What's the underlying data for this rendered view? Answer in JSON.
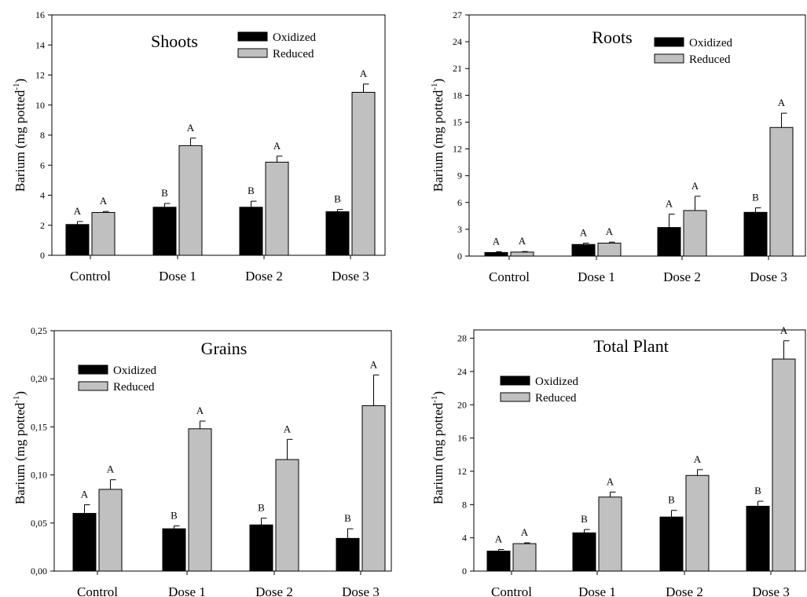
{
  "colors": {
    "oxidized": "#000000",
    "reduced": "#c0c0c0",
    "axis": "#000000",
    "background": "#ffffff"
  },
  "chart_data": [
    {
      "type": "bar",
      "title": "Shoots",
      "ylabel": "Barium (mg potted",
      "ylabel_sup": "-1",
      "ylabel_close": ")",
      "categories": [
        "Control",
        "Dose 1",
        "Dose 2",
        "Dose 3"
      ],
      "ylim": [
        0,
        16
      ],
      "yticks": [
        "0",
        "2",
        "4",
        "6",
        "8",
        "10",
        "12",
        "14",
        "16"
      ],
      "grid": false,
      "legend_position": "top-center",
      "series": [
        {
          "name": "Oxidized",
          "color": "#000000",
          "values": [
            2.05,
            3.2,
            3.2,
            2.9
          ],
          "errors": [
            0.2,
            0.25,
            0.4,
            0.15
          ],
          "sig": [
            "A",
            "B",
            "B",
            "B"
          ]
        },
        {
          "name": "Reduced",
          "color": "#c0c0c0",
          "values": [
            2.85,
            7.3,
            6.2,
            10.85
          ],
          "errors": [
            0.07,
            0.5,
            0.4,
            0.55
          ],
          "sig": [
            "A",
            "A",
            "A",
            "A"
          ]
        }
      ]
    },
    {
      "type": "bar",
      "title": "Roots",
      "ylabel": "Barium (mg potted",
      "ylabel_sup": "-1",
      "ylabel_close": ")",
      "categories": [
        "Control",
        "Dose 1",
        "Dose 2",
        "Dose 3"
      ],
      "ylim": [
        0,
        27
      ],
      "yticks": [
        "0",
        "3",
        "6",
        "9",
        "12",
        "15",
        "18",
        "21",
        "24",
        "27"
      ],
      "grid": false,
      "legend_position": "top-right",
      "series": [
        {
          "name": "Oxidized",
          "color": "#000000",
          "values": [
            0.4,
            1.3,
            3.2,
            4.9
          ],
          "errors": [
            0.08,
            0.15,
            1.5,
            0.5
          ],
          "sig": [
            "A",
            "A",
            "A",
            "B"
          ]
        },
        {
          "name": "Reduced",
          "color": "#c0c0c0",
          "values": [
            0.45,
            1.45,
            5.1,
            14.4
          ],
          "errors": [
            0.06,
            0.12,
            1.6,
            1.6
          ],
          "sig": [
            "A",
            "A",
            "A",
            "A"
          ]
        }
      ]
    },
    {
      "type": "bar",
      "title": "Grains",
      "ylabel": "Barium (mg potted",
      "ylabel_sup": "-1",
      "ylabel_close": ")",
      "categories": [
        "Control",
        "Dose 1",
        "Dose 2",
        "Dose 3"
      ],
      "ylim": [
        0,
        0.25
      ],
      "yticks": [
        "0,00",
        "0,05",
        "0,10",
        "0,15",
        "0,20",
        "0,25"
      ],
      "grid": false,
      "legend_position": "top-left",
      "series": [
        {
          "name": "Oxidized",
          "color": "#000000",
          "values": [
            0.06,
            0.044,
            0.048,
            0.034
          ],
          "errors": [
            0.009,
            0.003,
            0.007,
            0.01
          ],
          "sig": [
            "A",
            "B",
            "B",
            "B"
          ]
        },
        {
          "name": "Reduced",
          "color": "#c0c0c0",
          "values": [
            0.085,
            0.148,
            0.116,
            0.172
          ],
          "errors": [
            0.01,
            0.008,
            0.021,
            0.032
          ],
          "sig": [
            "A",
            "A",
            "A",
            "A"
          ]
        }
      ]
    },
    {
      "type": "bar",
      "title": "Total Plant",
      "ylabel": "Barium (mg potted",
      "ylabel_sup": "-1",
      "ylabel_close": ")",
      "categories": [
        "Control",
        "Dose 1",
        "Dose 2",
        "Dose 3"
      ],
      "ylim": [
        0,
        29
      ],
      "yticks": [
        "0",
        "4",
        "8",
        "12",
        "16",
        "20",
        "24",
        "28"
      ],
      "grid": false,
      "legend_position": "top-left",
      "series": [
        {
          "name": "Oxidized",
          "color": "#000000",
          "values": [
            2.4,
            4.6,
            6.5,
            7.8
          ],
          "errors": [
            0.2,
            0.4,
            0.8,
            0.6
          ],
          "sig": [
            "A",
            "B",
            "B",
            "B"
          ]
        },
        {
          "name": "Reduced",
          "color": "#c0c0c0",
          "values": [
            3.3,
            8.9,
            11.5,
            25.5
          ],
          "errors": [
            0.1,
            0.6,
            0.7,
            2.2
          ],
          "sig": [
            "A",
            "A",
            "A",
            "A"
          ]
        }
      ]
    }
  ]
}
